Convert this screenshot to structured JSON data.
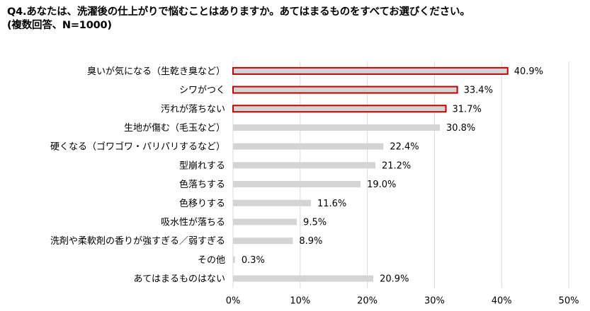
{
  "title": {
    "line1": "Q4.あなたは、洗濯後の仕上がりで悩むことはありますか。あてはまるものをすべてお選びください。",
    "line2": "(複数回答、N=1000)"
  },
  "colors": {
    "bar": "#d4d4d4",
    "highlight_border": "#c00000",
    "grid": "#d9d9d9"
  },
  "chart_data": {
    "type": "bar",
    "orientation": "horizontal",
    "title": "Q4.あなたは、洗濯後の仕上がりで悩むことはありますか。あてはまるものをすべてお選びください。",
    "subtitle": "(複数回答、N=1000)",
    "xlabel": "",
    "ylabel": "",
    "xlim": [
      0,
      50
    ],
    "x_ticks": [
      "0%",
      "10%",
      "20%",
      "30%",
      "40%",
      "50%"
    ],
    "x_tick_values": [
      0,
      10,
      20,
      30,
      40,
      50
    ],
    "grid": true,
    "legend": "none",
    "categories": [
      "臭いが気になる（生乾き臭など）",
      "シワがつく",
      "汚れが落ちない",
      "生地が傷む（毛玉など）",
      "硬くなる（ゴワゴワ・パリパリするなど）",
      "型崩れする",
      "色落ちする",
      "色移りする",
      "吸水性が落ちる",
      "洗剤や柔軟剤の香りが強すぎる／弱すぎる",
      "その他",
      "あてはまるものはない"
    ],
    "values": [
      40.9,
      33.4,
      31.7,
      30.8,
      22.4,
      21.2,
      19.0,
      11.6,
      9.5,
      8.9,
      0.3,
      20.9
    ],
    "value_labels": [
      "40.9%",
      "33.4%",
      "31.7%",
      "30.8%",
      "22.4%",
      "21.2%",
      "19.0%",
      "11.6%",
      "9.5%",
      "8.9%",
      "0.3%",
      "20.9%"
    ],
    "highlighted": [
      true,
      true,
      true,
      false,
      false,
      false,
      false,
      false,
      false,
      false,
      false,
      false
    ]
  }
}
